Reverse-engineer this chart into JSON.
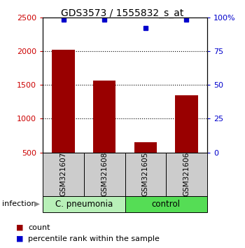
{
  "title": "GDS3573 / 1555832_s_at",
  "samples": [
    "GSM321607",
    "GSM321608",
    "GSM321605",
    "GSM321606"
  ],
  "counts": [
    2020,
    1560,
    650,
    1350
  ],
  "percentiles": [
    98.5,
    98.5,
    92,
    98.5
  ],
  "ylim_left": [
    500,
    2500
  ],
  "ylim_right": [
    0,
    100
  ],
  "bar_color": "#990000",
  "dot_color": "#0000cc",
  "bar_width": 0.55,
  "groups": [
    {
      "label": "C. pneumonia",
      "color": "#b8f0b8"
    },
    {
      "label": "control",
      "color": "#55dd55"
    }
  ],
  "group_label_prefix": "infection",
  "yticks_left": [
    500,
    1000,
    1500,
    2000,
    2500
  ],
  "yticks_right": [
    0,
    25,
    50,
    75,
    100
  ],
  "left_axis_color": "#cc0000",
  "right_axis_color": "#0000cc",
  "legend_count_label": "count",
  "legend_pct_label": "percentile rank within the sample",
  "gray_color": "#cccccc"
}
